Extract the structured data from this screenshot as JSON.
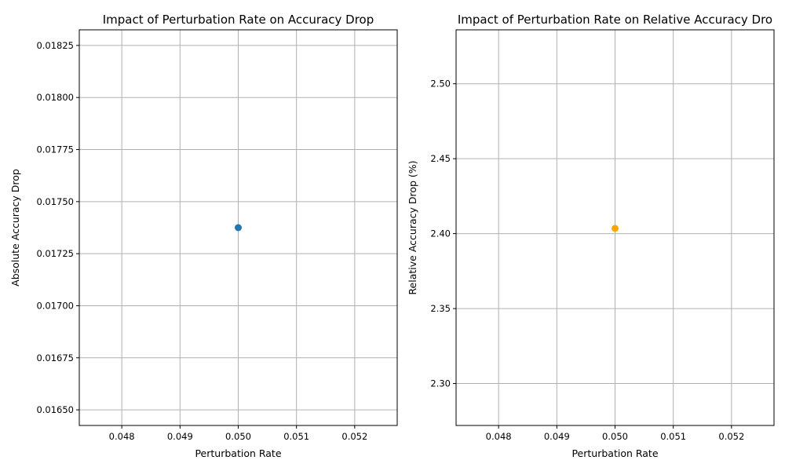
{
  "chart_data": [
    {
      "type": "scatter",
      "title": "Impact of Perturbation Rate on Accuracy Drop",
      "xlabel": "Perturbation Rate",
      "ylabel": "Absolute Accuracy Drop",
      "xlim": [
        0.04727,
        0.05273
      ],
      "ylim": [
        0.016425,
        0.018325
      ],
      "xticks": [
        0.048,
        0.049,
        0.05,
        0.051,
        0.052
      ],
      "xtick_labels": [
        "0.048",
        "0.049",
        "0.050",
        "0.051",
        "0.052"
      ],
      "yticks": [
        0.0165,
        0.01675,
        0.017,
        0.01725,
        0.0175,
        0.01775,
        0.018,
        0.01825
      ],
      "ytick_labels": [
        "0.01650",
        "0.01675",
        "0.01700",
        "0.01725",
        "0.01750",
        "0.01775",
        "0.01800",
        "0.01825"
      ],
      "grid": true,
      "color": "#1f77b4",
      "points": [
        {
          "x": 0.05,
          "y": 0.017375
        }
      ]
    },
    {
      "type": "scatter",
      "title": "Impact of Perturbation Rate on Relative Accuracy Dro",
      "xlabel": "Perturbation Rate",
      "ylabel": "Relative Accuracy Drop (%)",
      "xlim": [
        0.04727,
        0.05273
      ],
      "ylim": [
        2.272,
        2.536
      ],
      "xticks": [
        0.048,
        0.049,
        0.05,
        0.051,
        0.052
      ],
      "xtick_labels": [
        "0.048",
        "0.049",
        "0.050",
        "0.051",
        "0.052"
      ],
      "yticks": [
        2.3,
        2.35,
        2.4,
        2.45,
        2.5
      ],
      "ytick_labels": [
        "2.30",
        "2.35",
        "2.40",
        "2.45",
        "2.50"
      ],
      "grid": true,
      "color": "#ffa500",
      "points": [
        {
          "x": 0.05,
          "y": 2.4035
        }
      ]
    }
  ]
}
